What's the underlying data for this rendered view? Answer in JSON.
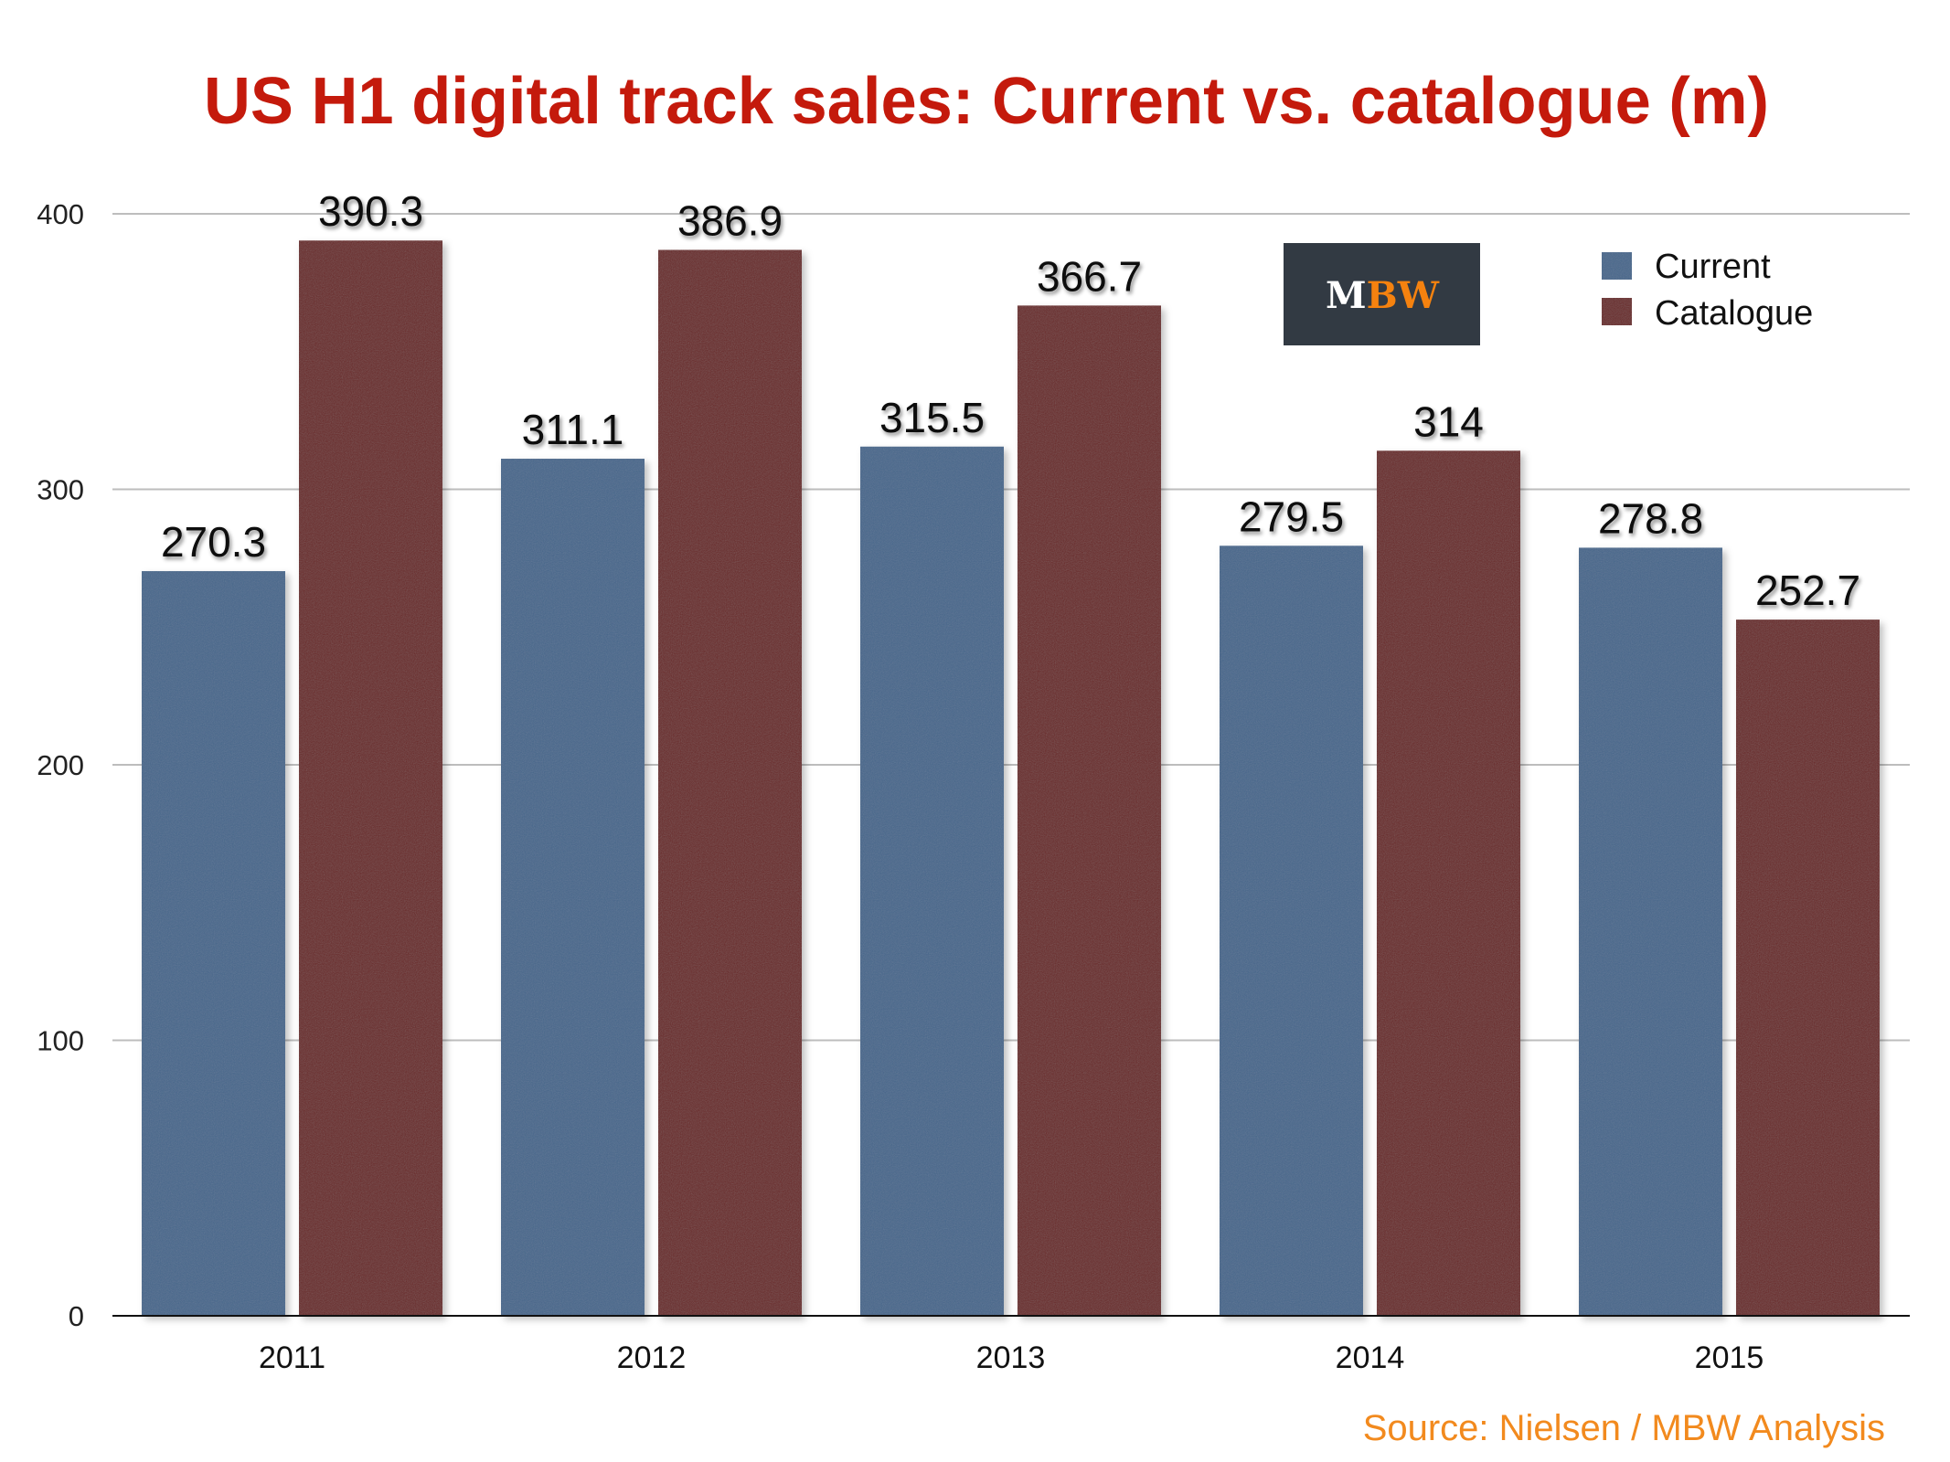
{
  "chart_data": {
    "type": "bar",
    "title": "US H1 digital track sales: Current vs. catalogue (m)",
    "xlabel": "",
    "ylabel": "",
    "categories": [
      "2011",
      "2012",
      "2013",
      "2014",
      "2015"
    ],
    "series": [
      {
        "name": "Current",
        "color": "#47678c",
        "values": [
          270.3,
          311.1,
          315.5,
          279.5,
          278.8
        ],
        "labels": [
          "270.3",
          "311.1",
          "315.5",
          "279.5",
          "278.8"
        ]
      },
      {
        "name": "Catalogue",
        "color": "#6b2a2a",
        "values": [
          390.3,
          386.9,
          366.7,
          314,
          252.7
        ],
        "labels": [
          "390.3",
          "386.9",
          "366.7",
          "314",
          "252.7"
        ]
      }
    ],
    "ylim": [
      0,
      400
    ],
    "yticks": [
      0,
      100,
      200,
      300,
      400
    ],
    "ytick_labels": [
      "0",
      "100",
      "200",
      "300",
      "400"
    ],
    "grid": true,
    "legend_position": "top-right",
    "source": "Source: Nielsen / MBW Analysis"
  },
  "logo": {
    "text_m": "M",
    "text_bw": "BW",
    "bg_color": "#323a43",
    "accent_color": "#f5820f"
  },
  "colors": {
    "title": "#c41a0c",
    "source": "#f28a1e",
    "grid": "#bdbdbd"
  }
}
